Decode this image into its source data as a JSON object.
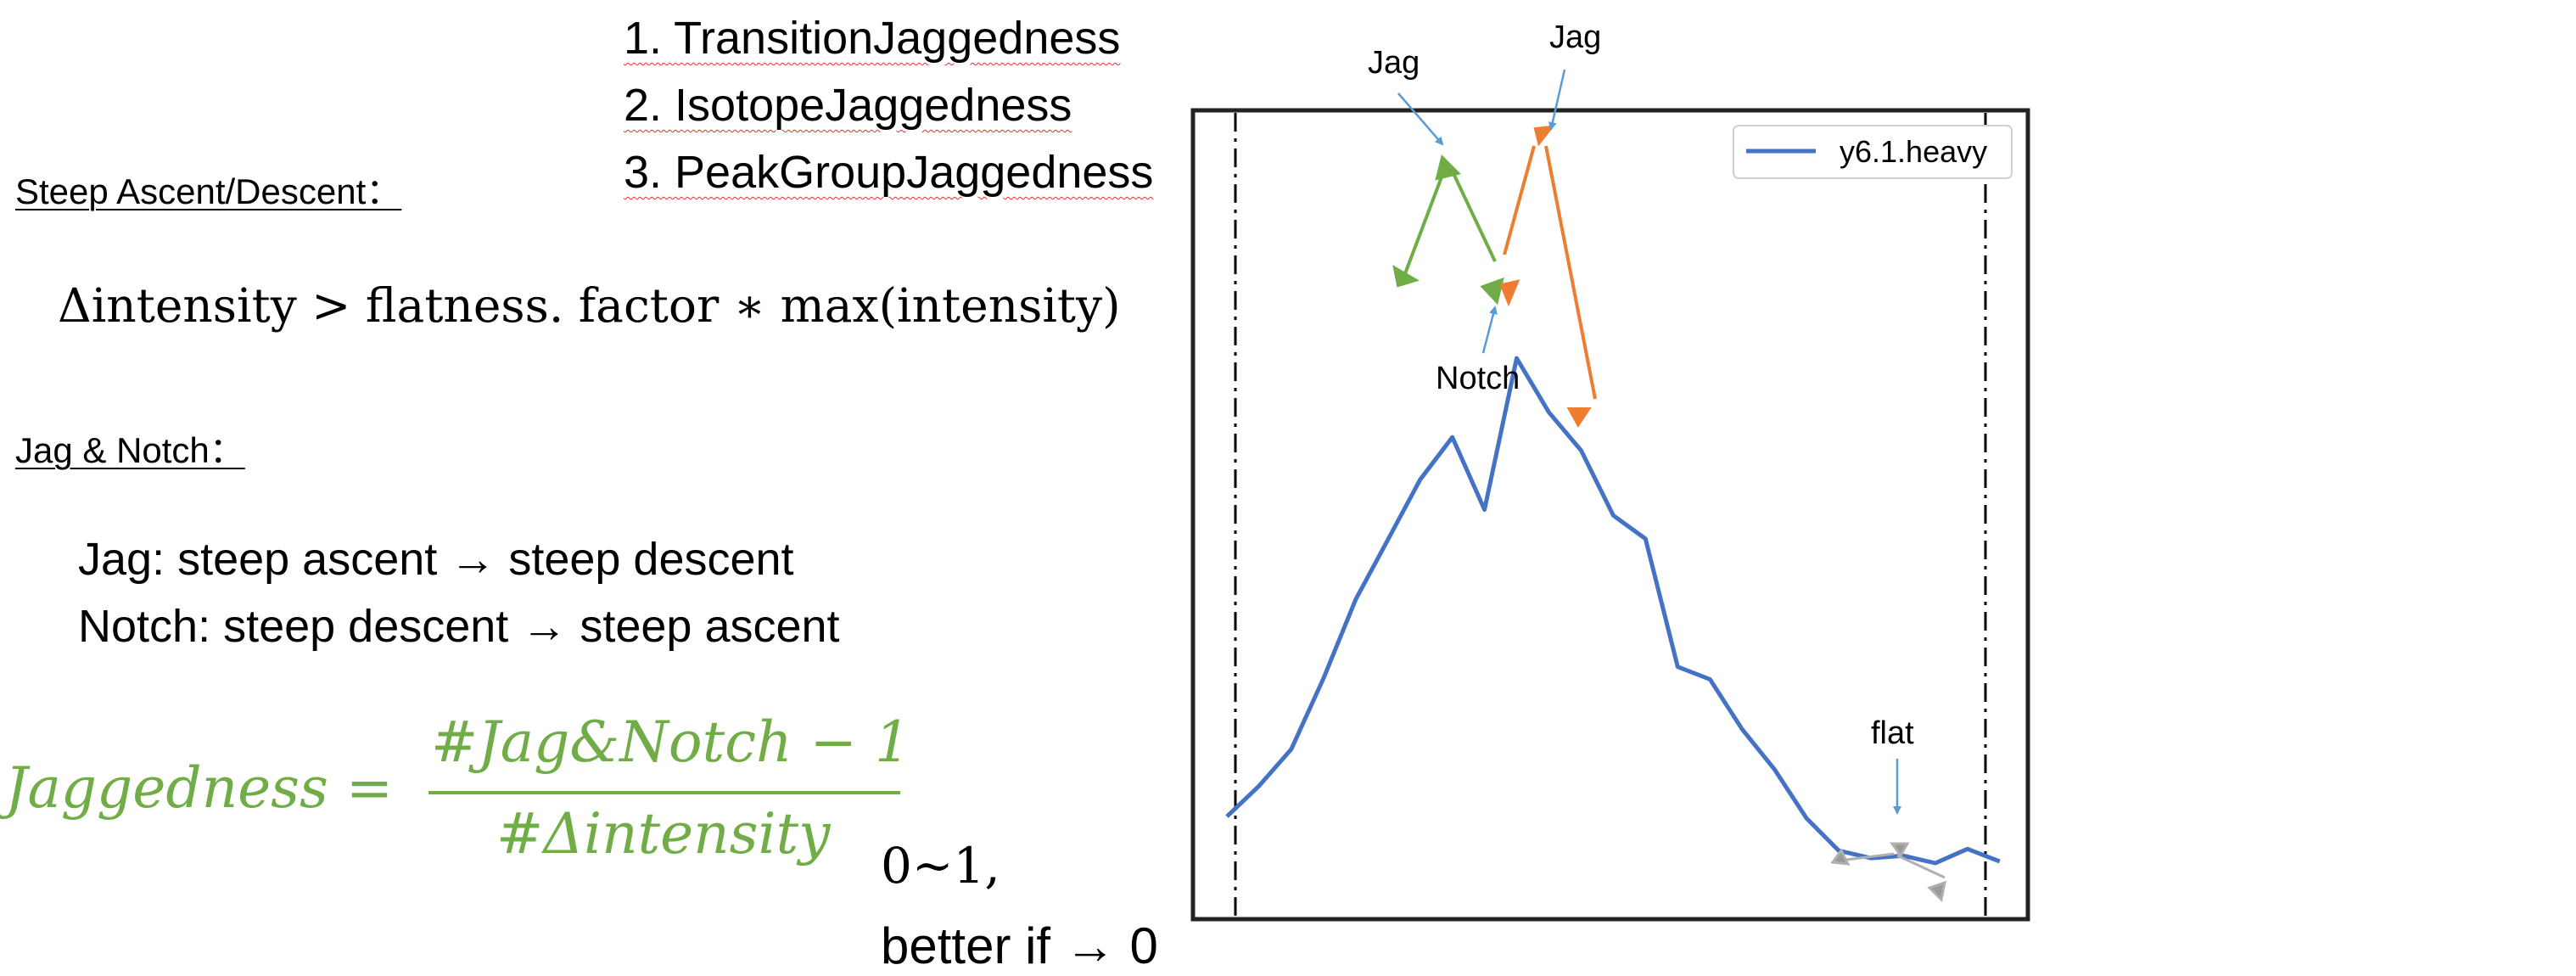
{
  "metrics": {
    "items": [
      "1. TransitionJaggedness",
      "2. IsotopeJaggedness",
      "3. PeakGroupJaggedness"
    ]
  },
  "steep": {
    "heading": "Steep Ascent/Descent：",
    "formula": "Δintensity > flatness. factor ∗ max(intensity)"
  },
  "jag_notch": {
    "heading": "Jag & Notch：",
    "jag_prefix": "Jag: steep ascent",
    "jag_suffix": "steep descent",
    "notch_prefix": "Notch: steep descent",
    "notch_suffix": "steep ascent"
  },
  "jaggedness": {
    "lhs": "Jaggedness =",
    "numerator": "#Jag&Notch − 1",
    "denominator": "#Δintensity",
    "range": "0~1,",
    "better_prefix": "better if",
    "better_value": "0"
  },
  "plot": {
    "legend_label": "y6.1.heavy",
    "line_color": "#4472c4",
    "annotations": {
      "jag1": "Jag",
      "jag2": "Jag",
      "notch": "Notch",
      "flat": "flat"
    },
    "series_y": [
      56,
      93,
      137,
      222,
      317,
      389,
      461,
      512,
      425,
      607,
      542,
      496,
      418,
      390,
      236,
      221,
      161,
      113,
      54,
      15,
      6,
      9,
      0,
      17,
      2
    ],
    "colors": {
      "green": "#70ad47",
      "orange": "#ed7d31",
      "gray": "#a6a6a6",
      "blue_arrow": "#5b9bd5"
    }
  }
}
